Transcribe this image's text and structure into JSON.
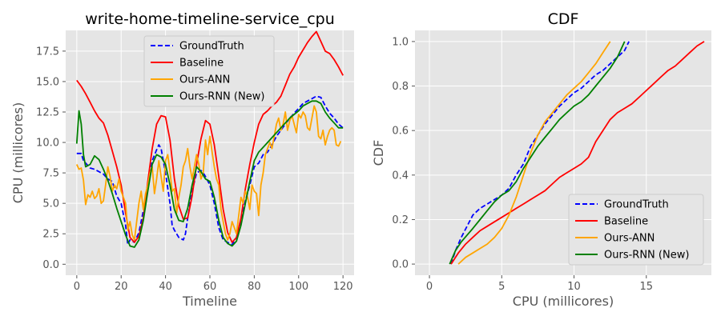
{
  "colors": {
    "panel_bg": "#E5E5E5",
    "grid": "#FFFFFF",
    "tick_text": "#555555",
    "legend_bg": "#E5E5E5",
    "legend_border": "#CCCCCC"
  },
  "chart_data": [
    {
      "type": "line",
      "title": "write-home-timeline-service_cpu",
      "xlabel": "Timeline",
      "ylabel": "CPU (millicores)",
      "xlim": [
        -5,
        125
      ],
      "ylim": [
        -0.9,
        19.2
      ],
      "xticks": [
        0,
        20,
        40,
        60,
        80,
        100,
        120
      ],
      "xtick_labels": [
        "0",
        "20",
        "40",
        "60",
        "80",
        "100",
        "120"
      ],
      "yticks": [
        0,
        2.5,
        5,
        7.5,
        10,
        12.5,
        15,
        17.5
      ],
      "ytick_labels": [
        "0.0",
        "2.5",
        "5.0",
        "7.5",
        "10.0",
        "12.5",
        "15.0",
        "17.5"
      ],
      "grid": true,
      "legend_position": "top-center",
      "series": [
        {
          "name": "GroundTruth",
          "color": "#0000FF",
          "dash": true,
          "x": [
            0,
            2,
            3,
            4,
            6,
            8,
            10,
            12,
            14,
            16,
            18,
            20,
            22,
            23,
            24,
            26,
            28,
            30,
            32,
            34,
            36,
            37,
            38,
            40,
            42,
            43,
            44,
            46,
            48,
            49,
            50,
            52,
            54,
            56,
            57,
            58,
            60,
            62,
            64,
            66,
            68,
            70,
            72,
            74,
            76,
            78,
            80,
            82,
            84,
            86,
            88,
            90,
            92,
            94,
            96,
            98,
            100,
            102,
            104,
            106,
            108,
            110,
            112,
            114,
            116,
            118,
            120
          ],
          "y": [
            9.1,
            9.1,
            8.5,
            8.3,
            7.9,
            7.8,
            7.6,
            7.4,
            7.0,
            6.8,
            5.6,
            5.0,
            3.2,
            1.6,
            2.0,
            1.8,
            2.6,
            4.4,
            6.6,
            8.5,
            9.4,
            9.8,
            9.5,
            7.5,
            5.0,
            3.2,
            2.8,
            2.2,
            2.0,
            2.5,
            3.8,
            6.0,
            7.5,
            7.7,
            7.5,
            7.2,
            6.5,
            5.0,
            3.0,
            2.0,
            1.8,
            1.6,
            2.2,
            3.5,
            5.2,
            6.5,
            8.0,
            8.3,
            9.0,
            9.2,
            9.8,
            10.5,
            11.0,
            11.5,
            12.0,
            12.4,
            12.8,
            13.2,
            13.4,
            13.6,
            13.8,
            13.7,
            13.0,
            12.4,
            12.0,
            11.5,
            11.2
          ]
        },
        {
          "name": "Baseline",
          "color": "#FF0000",
          "dash": false,
          "x": [
            0,
            2,
            4,
            6,
            8,
            10,
            12,
            14,
            16,
            18,
            20,
            22,
            24,
            26,
            28,
            30,
            32,
            34,
            36,
            38,
            40,
            42,
            44,
            46,
            48,
            50,
            52,
            54,
            56,
            58,
            60,
            62,
            64,
            66,
            68,
            70,
            72,
            74,
            76,
            78,
            80,
            82,
            84,
            86,
            88,
            90,
            92,
            94,
            96,
            98,
            100,
            102,
            104,
            106,
            108,
            110,
            112,
            114,
            116,
            118,
            120
          ],
          "y": [
            15.1,
            14.6,
            14.0,
            13.3,
            12.6,
            12.0,
            11.6,
            10.6,
            9.3,
            8.0,
            6.5,
            4.2,
            2.2,
            1.8,
            2.3,
            3.8,
            6.8,
            9.5,
            11.5,
            12.2,
            12.1,
            10.2,
            7.0,
            4.8,
            3.7,
            3.8,
            5.6,
            8.2,
            10.3,
            11.8,
            11.5,
            9.8,
            7.2,
            4.5,
            2.6,
            1.8,
            2.2,
            3.8,
            6.2,
            8.2,
            10.0,
            11.5,
            12.3,
            12.6,
            13.0,
            13.3,
            13.8,
            14.7,
            15.6,
            16.2,
            17.0,
            17.6,
            18.2,
            18.7,
            19.1,
            18.3,
            17.5,
            17.3,
            16.8,
            16.2,
            15.5
          ]
        },
        {
          "name": "Ours-ANN",
          "color": "#FFA500",
          "dash": false,
          "x": [
            0,
            1,
            2,
            3,
            4,
            5,
            6,
            7,
            8,
            9,
            10,
            11,
            12,
            13,
            14,
            15,
            16,
            17,
            18,
            19,
            20,
            21,
            22,
            23,
            24,
            25,
            26,
            27,
            28,
            29,
            30,
            31,
            32,
            33,
            34,
            35,
            36,
            37,
            38,
            39,
            40,
            41,
            42,
            43,
            44,
            45,
            46,
            47,
            48,
            49,
            50,
            51,
            52,
            53,
            54,
            55,
            56,
            57,
            58,
            59,
            60,
            61,
            62,
            63,
            64,
            65,
            66,
            67,
            68,
            69,
            70,
            71,
            72,
            73,
            74,
            75,
            76,
            77,
            78,
            79,
            80,
            81,
            82,
            83,
            84,
            85,
            86,
            87,
            88,
            89,
            90,
            91,
            92,
            93,
            94,
            95,
            96,
            97,
            98,
            99,
            100,
            101,
            102,
            103,
            104,
            105,
            106,
            107,
            108,
            109,
            110,
            111,
            112,
            113,
            114,
            115,
            116,
            117,
            118,
            119
          ],
          "y": [
            8.2,
            7.8,
            7.9,
            6.9,
            4.9,
            5.7,
            5.5,
            6.0,
            5.4,
            5.6,
            6.2,
            5.0,
            5.2,
            6.5,
            8.0,
            7.2,
            6.0,
            6.5,
            6.2,
            7.0,
            6.0,
            5.5,
            5.0,
            2.8,
            3.5,
            2.4,
            2.0,
            3.5,
            5.0,
            6.0,
            4.5,
            5.8,
            6.5,
            7.5,
            8.0,
            5.8,
            7.0,
            8.5,
            7.2,
            6.0,
            8.5,
            9.0,
            7.6,
            6.0,
            6.2,
            4.2,
            5.5,
            6.5,
            8.0,
            8.5,
            9.5,
            8.0,
            7.0,
            8.0,
            9.0,
            8.2,
            7.0,
            7.5,
            10.2,
            9.0,
            10.5,
            9.2,
            8.0,
            7.0,
            6.5,
            4.5,
            3.5,
            2.5,
            2.0,
            2.5,
            3.5,
            3.0,
            2.5,
            4.0,
            5.5,
            5.0,
            6.0,
            5.5,
            4.5,
            6.5,
            6.0,
            5.8,
            4.0,
            6.5,
            7.5,
            9.0,
            9.5,
            10.0,
            9.5,
            10.5,
            11.5,
            12.0,
            11.0,
            11.5,
            12.5,
            11.0,
            11.8,
            12.2,
            11.5,
            10.8,
            12.3,
            12.0,
            12.5,
            12.2,
            11.2,
            11.0,
            12.0,
            13.0,
            12.5,
            10.5,
            10.3,
            11.0,
            9.8,
            10.5,
            11.0,
            11.2,
            11.0,
            9.8,
            9.7,
            10.1
          ]
        },
        {
          "name": "Ours-RNN (New)",
          "color": "#008000",
          "dash": false,
          "x": [
            0,
            1,
            2,
            3,
            4,
            6,
            8,
            10,
            12,
            14,
            16,
            18,
            20,
            22,
            24,
            26,
            28,
            30,
            32,
            34,
            36,
            38,
            40,
            42,
            44,
            46,
            48,
            50,
            52,
            54,
            56,
            58,
            60,
            62,
            64,
            66,
            68,
            70,
            72,
            74,
            76,
            78,
            80,
            82,
            84,
            86,
            88,
            90,
            92,
            94,
            96,
            98,
            100,
            102,
            104,
            106,
            108,
            110,
            112,
            114,
            116,
            118,
            120
          ],
          "y": [
            9.9,
            12.6,
            11.5,
            9.0,
            8.0,
            8.2,
            8.9,
            8.6,
            7.8,
            6.9,
            5.8,
            4.6,
            3.5,
            2.4,
            1.5,
            1.4,
            2.0,
            3.6,
            6.0,
            8.2,
            9.0,
            8.8,
            8.2,
            6.5,
            4.5,
            3.6,
            3.5,
            4.6,
            6.5,
            8.0,
            7.6,
            7.0,
            6.8,
            5.5,
            3.6,
            2.2,
            1.7,
            1.5,
            1.9,
            3.2,
            5.0,
            6.8,
            8.5,
            9.2,
            9.6,
            10.0,
            10.4,
            10.8,
            11.2,
            11.6,
            12.0,
            12.3,
            12.6,
            13.0,
            13.2,
            13.4,
            13.4,
            13.2,
            12.5,
            12.0,
            11.6,
            11.2,
            11.2
          ]
        }
      ]
    },
    {
      "type": "line",
      "title": "CDF",
      "xlabel": "CPU (millicores)",
      "ylabel": "CDF",
      "xlim": [
        -1,
        19.5
      ],
      "ylim": [
        -0.05,
        1.05
      ],
      "xticks": [
        0,
        5,
        10,
        15
      ],
      "xtick_labels": [
        "0",
        "5",
        "10",
        "15"
      ],
      "yticks": [
        0,
        0.2,
        0.4,
        0.6,
        0.8,
        1.0
      ],
      "ytick_labels": [
        "0.0",
        "0.2",
        "0.4",
        "0.6",
        "0.8",
        "1.0"
      ],
      "grid": true,
      "legend_position": "bottom-right",
      "series": [
        {
          "name": "GroundTruth",
          "color": "#0000FF",
          "dash": true,
          "x": [
            1.5,
            1.8,
            2.2,
            2.6,
            3.0,
            3.5,
            4.0,
            4.5,
            5.0,
            5.5,
            6.0,
            6.5,
            7.0,
            7.5,
            8.0,
            8.5,
            9.0,
            9.5,
            10.0,
            10.5,
            11.0,
            11.5,
            12.0,
            12.5,
            13.0,
            13.5,
            13.8
          ],
          "y": [
            0.0,
            0.06,
            0.12,
            0.17,
            0.22,
            0.25,
            0.27,
            0.29,
            0.31,
            0.34,
            0.4,
            0.45,
            0.53,
            0.58,
            0.63,
            0.67,
            0.71,
            0.74,
            0.77,
            0.79,
            0.82,
            0.85,
            0.87,
            0.9,
            0.93,
            0.96,
            1.0
          ]
        },
        {
          "name": "Baseline",
          "color": "#FF0000",
          "dash": false,
          "x": [
            1.5,
            2.0,
            2.5,
            3.0,
            3.5,
            4.0,
            4.5,
            5.0,
            5.5,
            6.0,
            6.5,
            7.0,
            7.5,
            8.0,
            8.5,
            9.0,
            9.5,
            10.0,
            10.5,
            11.0,
            11.5,
            12.0,
            12.5,
            13.0,
            13.5,
            14.0,
            14.5,
            15.0,
            15.5,
            16.0,
            16.5,
            17.0,
            17.5,
            18.0,
            18.5,
            19.0
          ],
          "y": [
            0.0,
            0.05,
            0.09,
            0.12,
            0.15,
            0.17,
            0.19,
            0.21,
            0.23,
            0.25,
            0.27,
            0.29,
            0.31,
            0.33,
            0.36,
            0.39,
            0.41,
            0.43,
            0.45,
            0.48,
            0.55,
            0.6,
            0.65,
            0.68,
            0.7,
            0.72,
            0.75,
            0.78,
            0.81,
            0.84,
            0.87,
            0.89,
            0.92,
            0.95,
            0.98,
            1.0
          ]
        },
        {
          "name": "Ours-ANN",
          "color": "#FFA500",
          "dash": false,
          "x": [
            2.0,
            2.5,
            3.0,
            3.5,
            4.0,
            4.5,
            5.0,
            5.5,
            6.0,
            6.5,
            7.0,
            7.5,
            8.0,
            8.5,
            9.0,
            9.5,
            10.0,
            10.5,
            11.0,
            11.5,
            12.0,
            12.5
          ],
          "y": [
            0.0,
            0.03,
            0.05,
            0.07,
            0.09,
            0.12,
            0.16,
            0.22,
            0.3,
            0.4,
            0.5,
            0.58,
            0.64,
            0.68,
            0.72,
            0.76,
            0.79,
            0.82,
            0.86,
            0.9,
            0.95,
            1.0
          ]
        },
        {
          "name": "Ours-RNN (New)",
          "color": "#008000",
          "dash": false,
          "x": [
            1.4,
            1.8,
            2.2,
            2.6,
            3.0,
            3.5,
            4.0,
            4.5,
            5.0,
            5.5,
            6.0,
            6.5,
            7.0,
            7.5,
            8.0,
            8.5,
            9.0,
            9.5,
            10.0,
            10.5,
            11.0,
            11.5,
            12.0,
            12.5,
            13.0,
            13.5
          ],
          "y": [
            0.0,
            0.06,
            0.1,
            0.13,
            0.16,
            0.2,
            0.24,
            0.28,
            0.31,
            0.33,
            0.37,
            0.43,
            0.48,
            0.53,
            0.57,
            0.61,
            0.65,
            0.68,
            0.71,
            0.73,
            0.76,
            0.8,
            0.84,
            0.88,
            0.93,
            1.0
          ]
        }
      ]
    }
  ]
}
